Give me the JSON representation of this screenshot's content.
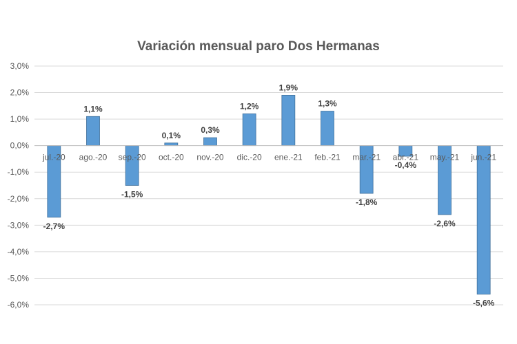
{
  "chart_data": {
    "type": "bar",
    "title": "Variación mensual paro Dos Hermanas",
    "xlabel": "",
    "ylabel": "",
    "categories": [
      "jul.-20",
      "ago.-20",
      "sep.-20",
      "oct.-20",
      "nov.-20",
      "dic.-20",
      "ene.-21",
      "feb.-21",
      "mar.-21",
      "abr.-21",
      "may.-21",
      "jun.-21"
    ],
    "values": [
      -2.7,
      1.1,
      -1.5,
      0.1,
      0.3,
      1.2,
      1.9,
      1.3,
      -1.8,
      -0.4,
      -2.6,
      -5.6
    ],
    "value_labels": [
      "-2,7%",
      "1,1%",
      "-1,5%",
      "0,1%",
      "0,3%",
      "1,2%",
      "1,9%",
      "1,3%",
      "-1,8%",
      "-0,4%",
      "-2,6%",
      "-5,6%"
    ],
    "ylim": [
      -6,
      3
    ],
    "yticks": [
      3,
      2,
      1,
      0,
      -1,
      -2,
      -3,
      -4,
      -5,
      -6
    ],
    "ytick_labels": [
      "3,0%",
      "2,0%",
      "1,0%",
      "0,0%",
      "-1,0%",
      "-2,0%",
      "-3,0%",
      "-4,0%",
      "-5,0%",
      "-6,0%"
    ],
    "grid": true,
    "legend": "none",
    "colors": {
      "bar_fill": "#5B9BD5",
      "bar_stroke": "#41719C",
      "grid": "#D9D9D9",
      "text": "#595959"
    }
  }
}
